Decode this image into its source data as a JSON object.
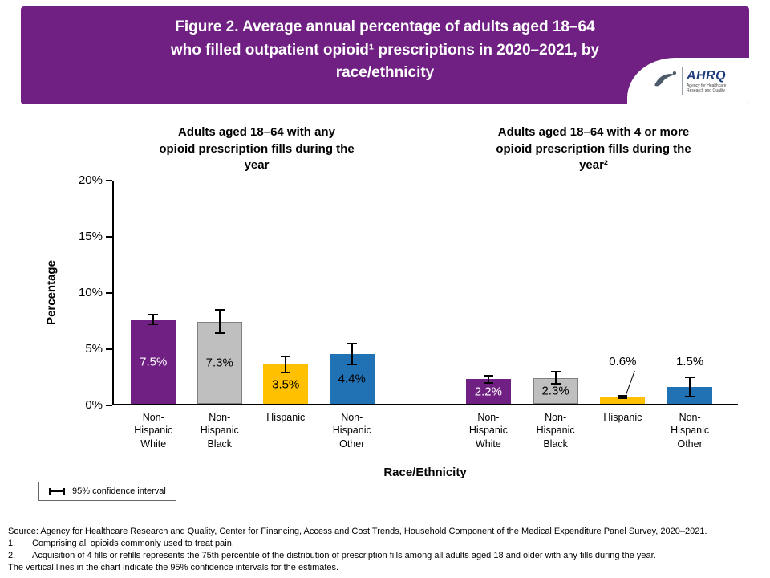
{
  "banner": {
    "title_lines": [
      "Figure 2. Average annual percentage of adults aged 18–64",
      "who filled outpatient opioid¹ prescriptions in 2020–2021, by",
      "race/ethnicity"
    ],
    "bg_color": "#702082"
  },
  "logo": {
    "abbr": "AHRQ",
    "tagline": "Agency for Healthcare Research and Quality"
  },
  "chart_data": {
    "type": "bar",
    "ylabel": "Percentage",
    "xlabel": "Race/Ethnicity",
    "ylim": [
      0,
      20
    ],
    "yticks": [
      0,
      5,
      10,
      15,
      20
    ],
    "ytick_suffix": "%",
    "bar_colors": [
      "#702082",
      "#bfbfbf",
      "#ffc000",
      "#2171b5"
    ],
    "bar_borders": [
      null,
      "#808080",
      null,
      null
    ],
    "label_colors": [
      "#ffffff",
      "#000000",
      "#000000",
      "#000000"
    ],
    "legend": {
      "label": "95% confidence interval"
    },
    "panels": [
      {
        "title": "Adults aged 18–64 with any opioid prescription fills during the year",
        "title_lines": [
          "Adults aged 18–64 with any",
          "opioid prescription fills during the",
          "year"
        ],
        "categories": [
          "Non-Hispanic White",
          "Non-Hispanic Black",
          "Hispanic",
          "Non-Hispanic Other"
        ],
        "values": [
          7.5,
          7.3,
          3.5,
          4.4
        ],
        "ci": [
          0.5,
          1.1,
          0.8,
          1.0
        ],
        "labels": [
          "7.5%",
          "7.3%",
          "3.5%",
          "4.4%"
        ],
        "label_pos": [
          "inside",
          "inside",
          "inside",
          "inside"
        ],
        "leader": [
          false,
          false,
          false,
          false
        ]
      },
      {
        "title": "Adults aged 18–64 with 4 or more opioid prescription fills during the year²",
        "title_lines": [
          "Adults aged 18–64 with 4 or more",
          "opioid prescription fills during the",
          "year²"
        ],
        "categories": [
          "Non-Hispanic White",
          "Non-Hispanic Black",
          "Hispanic",
          "Non-Hispanic Other"
        ],
        "values": [
          2.2,
          2.3,
          0.6,
          1.5
        ],
        "ci": [
          0.4,
          0.6,
          0.2,
          0.9
        ],
        "labels": [
          "2.2%",
          "2.3%",
          "0.6%",
          "1.5%"
        ],
        "label_pos": [
          "inside",
          "inside",
          "above",
          "above"
        ],
        "leader": [
          false,
          false,
          true,
          false
        ]
      }
    ]
  },
  "footer": {
    "source": "Source: Agency for Healthcare Research and Quality, Center for Financing, Access and Cost Trends, Household Component of the Medical Expenditure Panel Survey, 2020–2021.",
    "note1_num": "1.",
    "note1": "Comprising all opioids commonly used to treat pain.",
    "note2_num": "2.",
    "note2": "Acquisition of 4 fills or refills represents the 75th percentile of the distribution of prescription fills among all adults aged 18 and older with any fills during the year.",
    "note3": "The vertical lines in the chart indicate the 95% confidence intervals for the estimates."
  }
}
